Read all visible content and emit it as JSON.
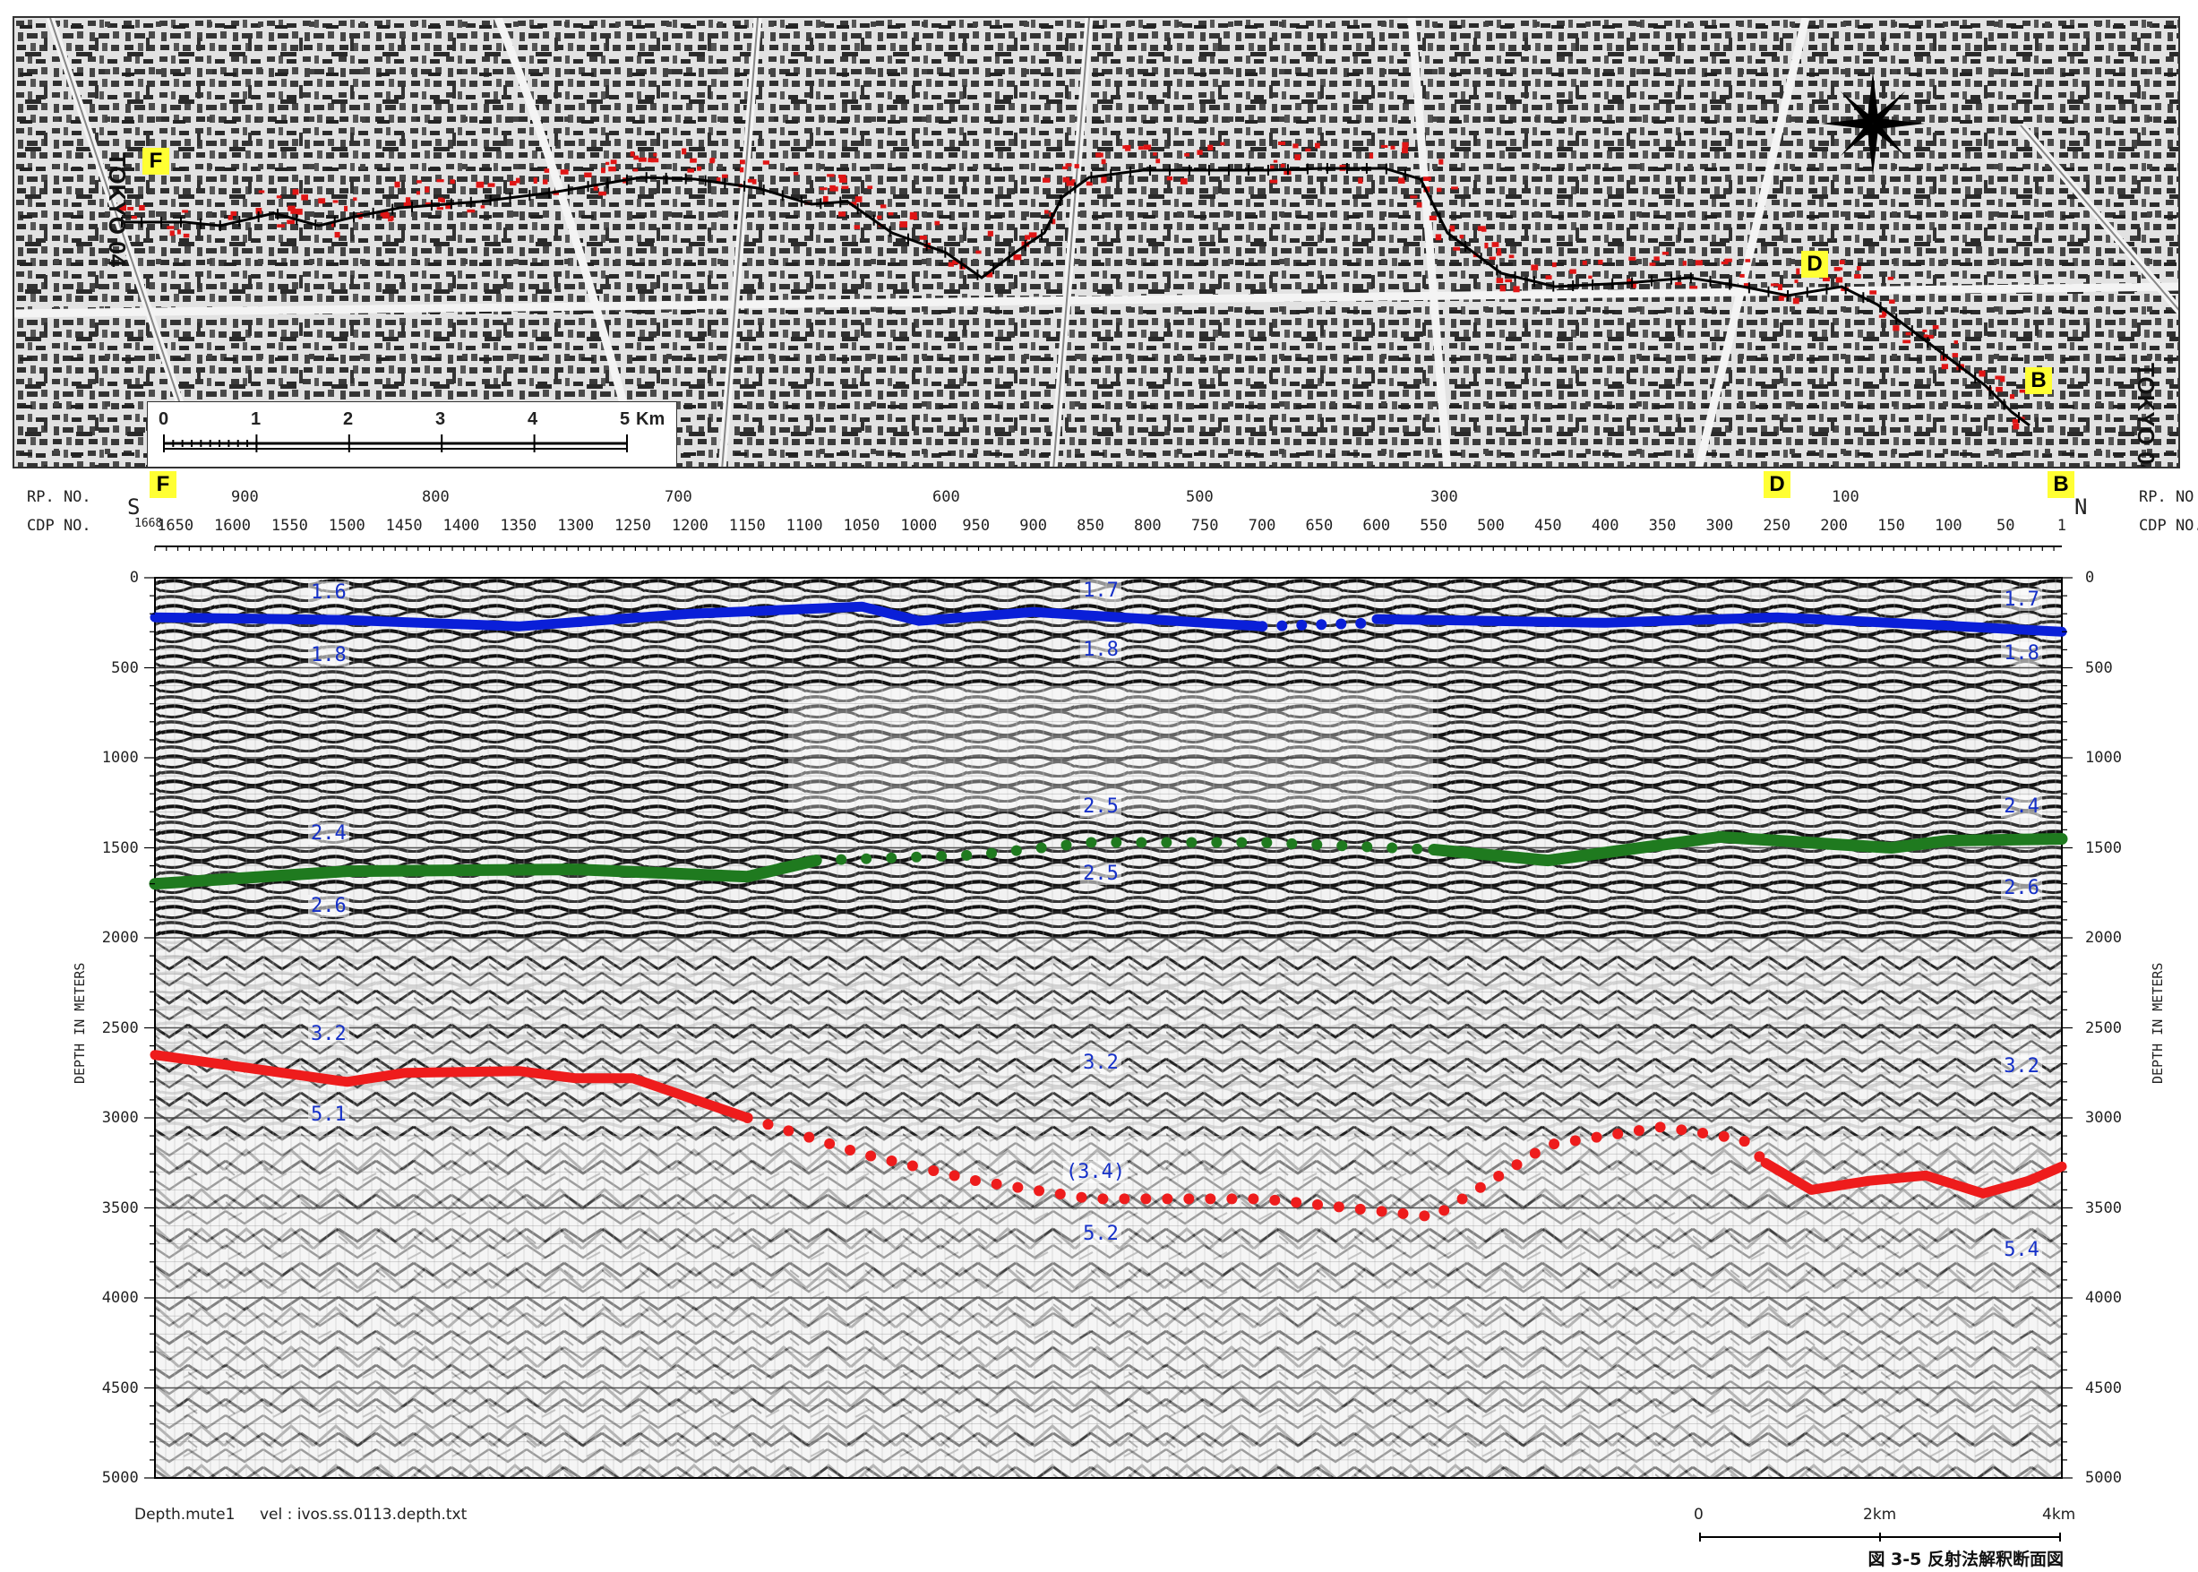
{
  "map": {
    "left_line_label": "TOKYO 04",
    "right_line_label": "TOKYO 04",
    "markers": [
      "F",
      "D",
      "B"
    ],
    "scale_ticks": [
      "0",
      "1",
      "2",
      "3",
      "4",
      "5"
    ],
    "scale_unit": "Km"
  },
  "section": {
    "rp_label": "RP. NO.",
    "cdp_label": "CDP NO.",
    "rp_label_right": "RP. NO",
    "cdp_label_right": "CDP NO.",
    "south": "S",
    "north": "N",
    "markers": [
      "F",
      "D",
      "B"
    ],
    "rp_ticks": [
      "900",
      "800",
      "700",
      "600",
      "500",
      "300",
      "100"
    ],
    "cdp_ticks": [
      "1650",
      "1600",
      "1550",
      "1500",
      "1450",
      "1400",
      "1350",
      "1300",
      "1250",
      "1200",
      "1150",
      "1100",
      "1050",
      "1000",
      "950",
      "900",
      "850",
      "800",
      "750",
      "700",
      "650",
      "600",
      "550",
      "500",
      "450",
      "400",
      "350",
      "300",
      "250",
      "200",
      "150",
      "100",
      "50",
      "1"
    ],
    "cdp_first_label": "1668",
    "depth_ticks": [
      "0",
      "500",
      "1000",
      "1500",
      "2000",
      "2500",
      "3000",
      "3500",
      "4000",
      "4500",
      "5000"
    ],
    "y_axis_label": "DEPTH IN METERS",
    "velocity_labels": {
      "blue_left_top": "1.6",
      "blue_left_bottom": "1.8",
      "blue_mid_top": "1.7",
      "blue_mid_bottom": "1.8",
      "blue_right_top": "1.7",
      "blue_right_bottom": "1.8",
      "green_left_top": "2.4",
      "green_left_bottom": "2.6",
      "green_mid_top": "2.5",
      "green_mid_bottom": "2.5",
      "green_right_top": "2.4",
      "green_right_bottom": "2.6",
      "red_left_top": "3.2",
      "red_left_bottom": "5.1",
      "red_mid_top": "3.2",
      "red_mid_paren": "(3.4)",
      "red_mid_bottom": "5.2",
      "red_right_top": "3.2",
      "red_right_bottom": "5.4"
    },
    "colors": {
      "blue_horizon": "#0a1fd8",
      "green_horizon": "#1f7a1f",
      "red_horizon": "#ee1c1c",
      "velocity_text": "#1530c8",
      "marker_yellow": "#ffff33"
    }
  },
  "footer": {
    "process_label": "Depth.mute1",
    "vel_label": "vel : ivos.ss.0113.depth.txt",
    "scale_ticks": [
      "0",
      "2km",
      "4km"
    ],
    "caption": "図 3-5 反射法解釈断面図"
  }
}
